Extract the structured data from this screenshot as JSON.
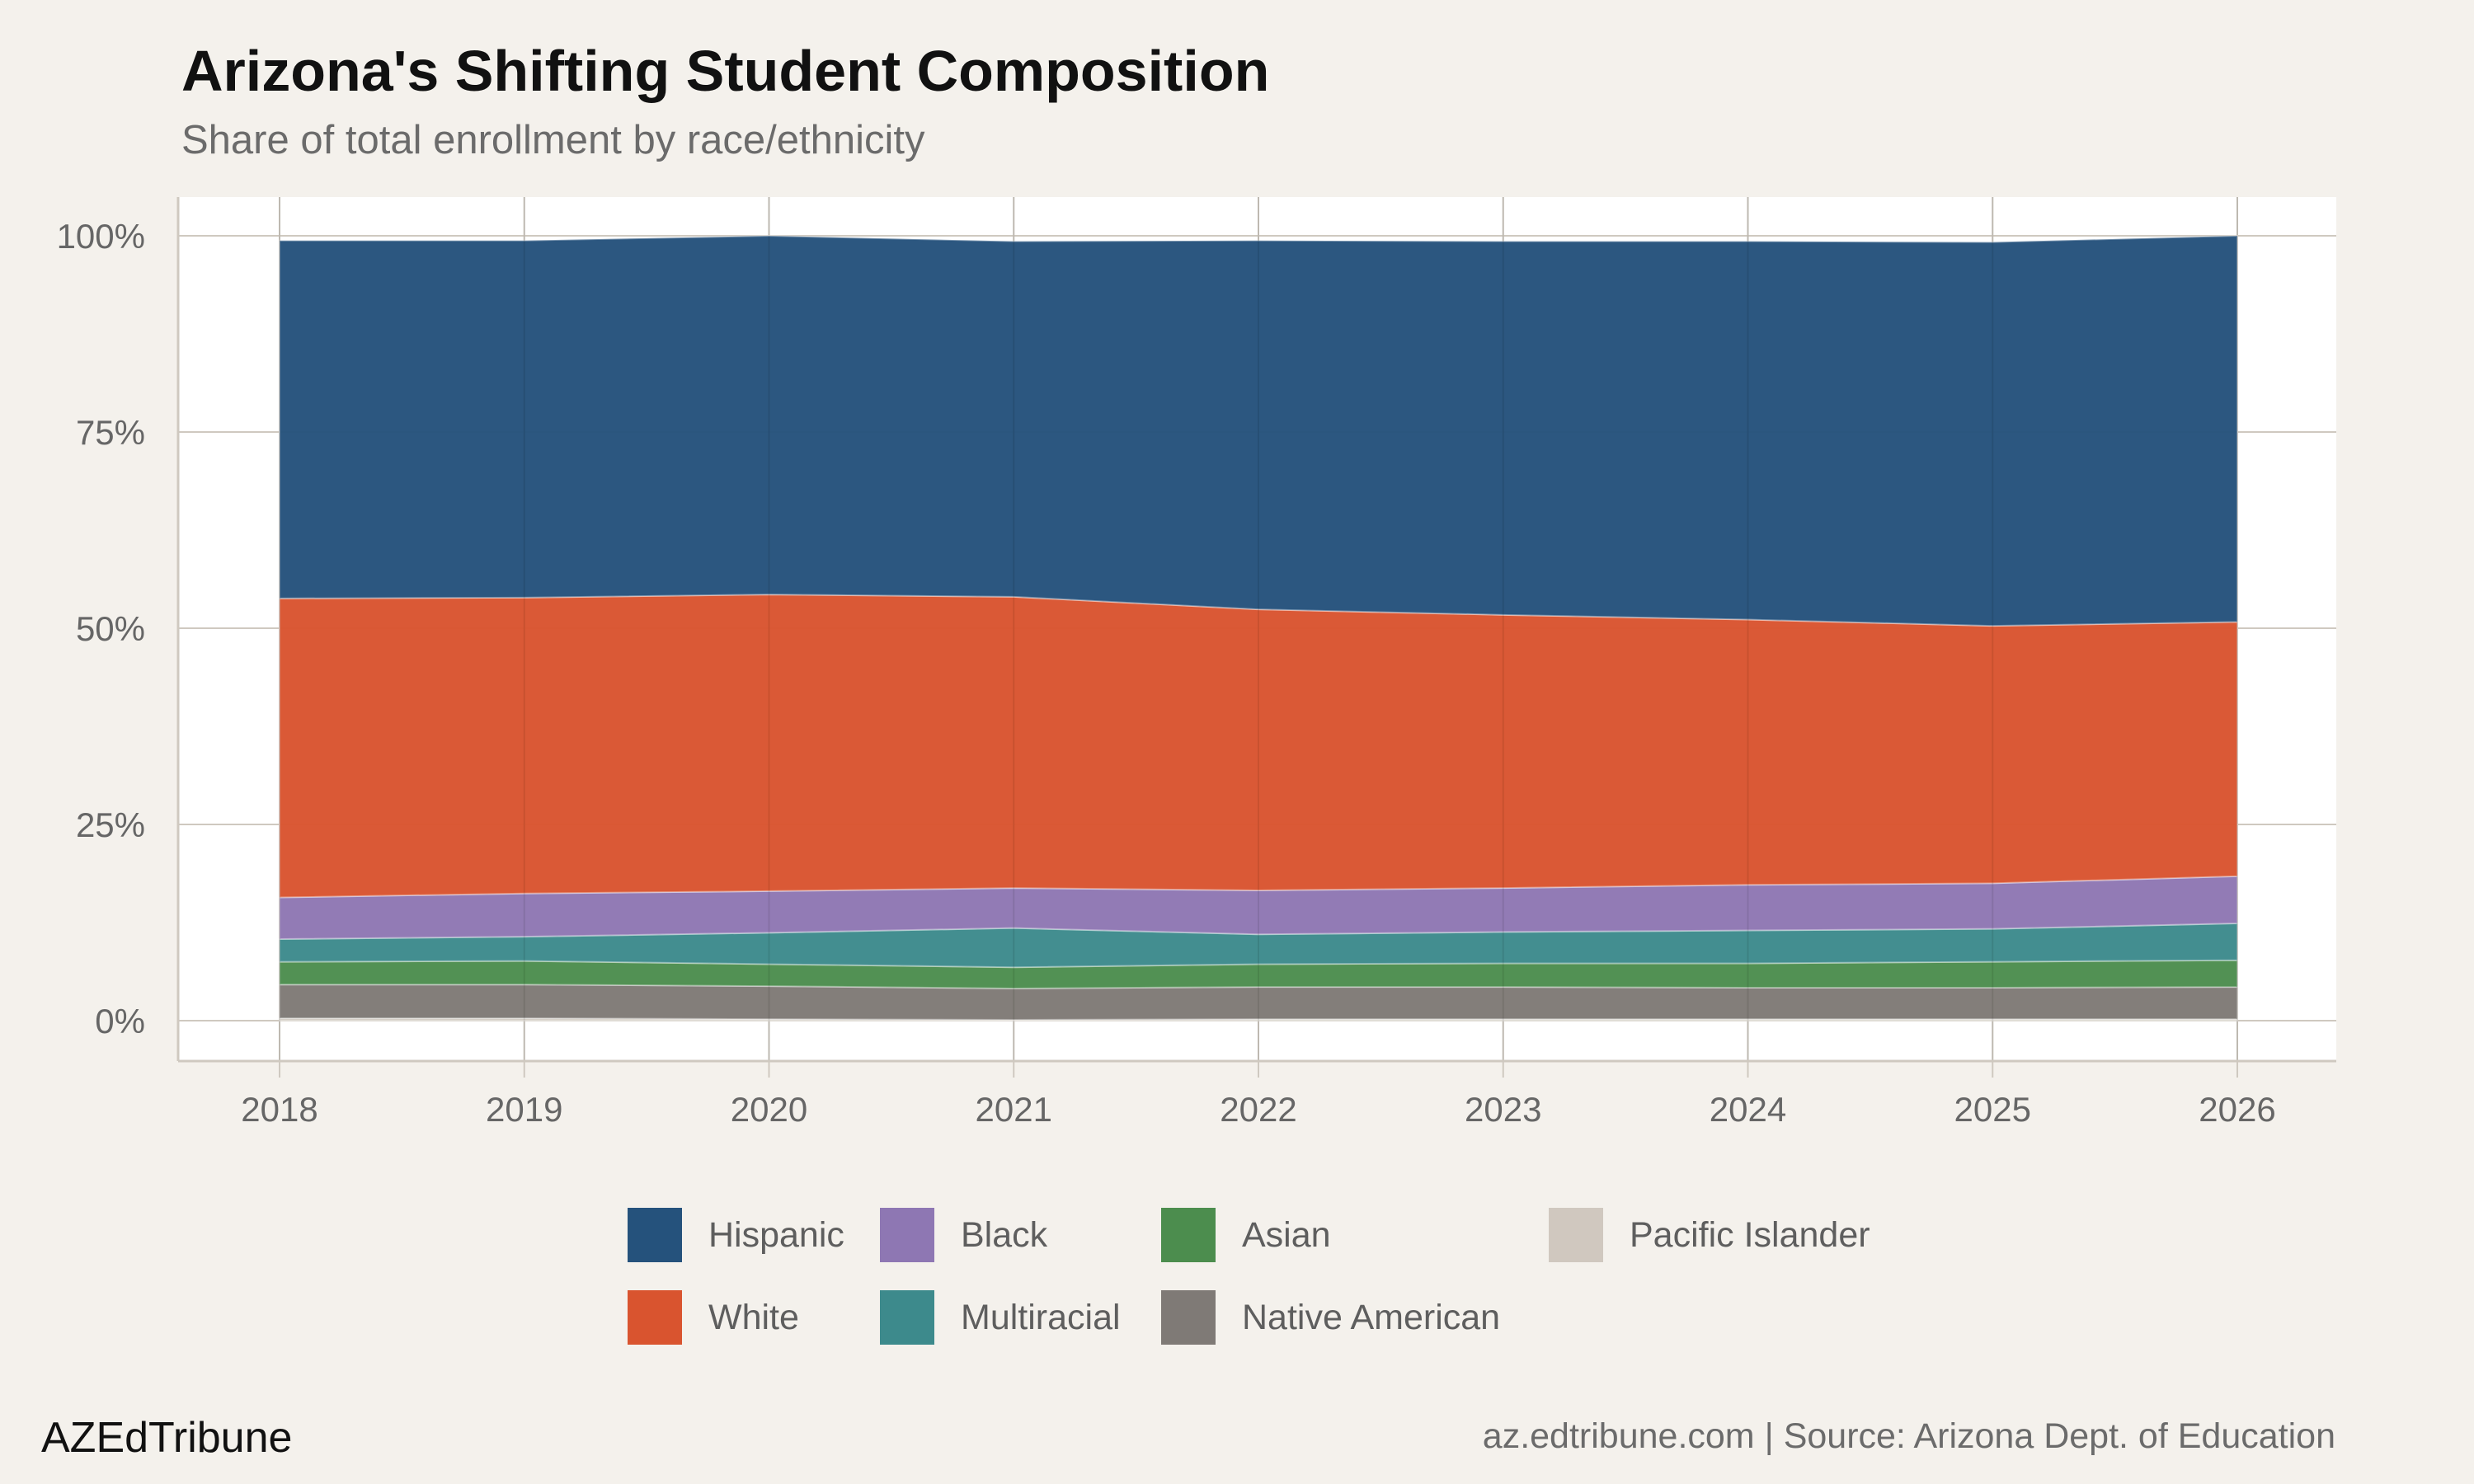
{
  "title": "Arizona's Shifting Student Composition",
  "subtitle": "Share of total enrollment by race/ethnicity",
  "footer": {
    "brand": "AZEdTribune",
    "caption": "az.edtribune.com | Source: Arizona Dept. of Education"
  },
  "chart_data": {
    "type": "area",
    "stacked": true,
    "title": "Arizona's Shifting Student Composition",
    "subtitle": "Share of total enrollment by race/ethnicity",
    "xlabel": "",
    "ylabel": "",
    "x": [
      2018,
      2019,
      2020,
      2021,
      2022,
      2023,
      2024,
      2025,
      2026
    ],
    "x_tick_labels": [
      "2018",
      "2019",
      "2020",
      "2021",
      "2022",
      "2023",
      "2024",
      "2025",
      "2026"
    ],
    "y_ticks": [
      0,
      25,
      50,
      75,
      100
    ],
    "y_tick_labels": [
      "0%",
      "25%",
      "50%",
      "75%",
      "100%"
    ],
    "ylim": [
      0,
      100
    ],
    "grid": true,
    "legend_position": "bottom",
    "series": [
      {
        "name": "Pacific Islander",
        "color": "#d0c8bf",
        "values": [
          0.3,
          0.3,
          0.2,
          0.1,
          0.2,
          0.2,
          0.2,
          0.2,
          0.2
        ]
      },
      {
        "name": "Native American",
        "color": "#7f7a76",
        "values": [
          4.3,
          4.3,
          4.2,
          4.0,
          4.1,
          4.1,
          4.0,
          4.0,
          4.1
        ]
      },
      {
        "name": "Asian",
        "color": "#4c8d4e",
        "values": [
          2.9,
          3.0,
          2.8,
          2.7,
          2.9,
          3.0,
          3.1,
          3.3,
          3.4
        ]
      },
      {
        "name": "Multiracial",
        "color": "#3d8a8c",
        "values": [
          2.9,
          3.1,
          4.0,
          5.0,
          3.8,
          4.0,
          4.2,
          4.2,
          4.7
        ]
      },
      {
        "name": "Black",
        "color": "#8e77b3",
        "values": [
          5.3,
          5.5,
          5.3,
          5.1,
          5.6,
          5.6,
          5.8,
          5.8,
          6.0
        ]
      },
      {
        "name": "White",
        "color": "#d9542f",
        "values": [
          38.1,
          37.7,
          37.8,
          37.1,
          35.8,
          34.8,
          33.8,
          32.8,
          32.4
        ]
      },
      {
        "name": "Hispanic",
        "color": "#25527c",
        "values": [
          45.6,
          45.5,
          45.7,
          45.3,
          47.0,
          47.6,
          48.2,
          48.9,
          49.2
        ]
      }
    ],
    "legend_order": [
      "Hispanic",
      "White",
      "Black",
      "Multiracial",
      "Asian",
      "Native American",
      "Pacific Islander"
    ]
  }
}
